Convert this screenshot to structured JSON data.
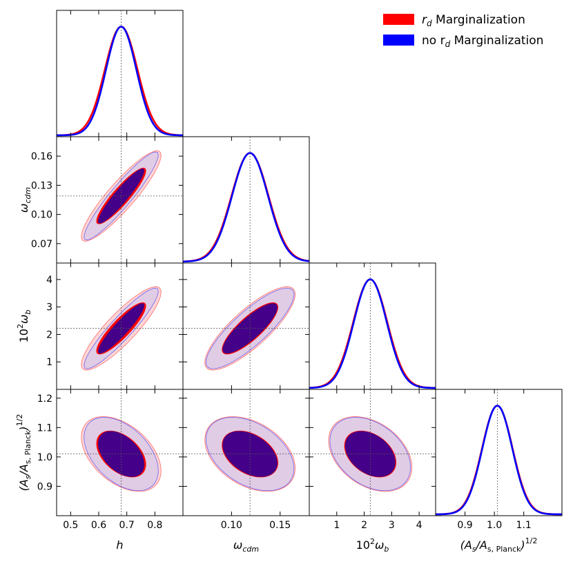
{
  "chart_data": {
    "type": "corner-plot",
    "title": "",
    "parameters": [
      "h",
      "omega_cdm",
      "10^2 omega_b",
      "(A_s/A_s,Planck)^1/2"
    ],
    "param_labels": [
      {
        "main": "h",
        "sub": "",
        "sup": ""
      },
      {
        "main": "ω",
        "sub": "cdm",
        "sup": ""
      },
      {
        "main": "10",
        "sup": "2",
        "main2": "ω",
        "sub": "b"
      },
      {
        "main": "(A",
        "sub": "s",
        "mid": "/A",
        "sub2": "s, Planck",
        "tail": ")",
        "sup": "1/2"
      }
    ],
    "fiducial": [
      0.68,
      0.119,
      2.22,
      1.01
    ],
    "ranges": [
      [
        0.45,
        0.9
      ],
      [
        0.05,
        0.18
      ],
      [
        0.0,
        4.6
      ],
      [
        0.8,
        1.23
      ]
    ],
    "x_ticks": [
      [
        "0.5",
        "0.6",
        "0.7",
        "0.8"
      ],
      [
        "0.10",
        "0.15"
      ],
      [
        "1",
        "2",
        "3",
        "4"
      ],
      [
        "0.9",
        "1.0",
        "1.1"
      ]
    ],
    "x_tick_values": [
      [
        0.5,
        0.6,
        0.7,
        0.8
      ],
      [
        0.1,
        0.15
      ],
      [
        1,
        2,
        3,
        4
      ],
      [
        0.9,
        1.0,
        1.1
      ]
    ],
    "y_ticks": {
      "1": {
        "labels": [
          "0.07",
          "0.10",
          "0.13",
          "0.16"
        ],
        "values": [
          0.07,
          0.1,
          0.13,
          0.16
        ]
      },
      "2": {
        "labels": [
          "1",
          "2",
          "3",
          "4"
        ],
        "values": [
          1,
          2,
          3,
          4
        ]
      },
      "3": {
        "labels": [
          "0.9",
          "1.0",
          "1.1",
          "1.2"
        ],
        "values": [
          0.9,
          1.0,
          1.1,
          1.2
        ]
      }
    },
    "series": [
      {
        "name": "r_d Marginalization",
        "legend_prefix": "r",
        "legend_sub": "d",
        "legend_suffix": " Marginalization",
        "color": "#ff0000",
        "color_inner": "#ff0000",
        "color_outer": "#ffc8c8",
        "means": [
          0.68,
          0.119,
          2.22,
          1.01
        ],
        "sigmas": [
          0.058,
          0.019,
          0.62,
          0.052
        ],
        "correlations": {
          "1-0": 0.9,
          "2-0": 0.87,
          "2-1": 0.82,
          "3-0": -0.45,
          "3-1": -0.38,
          "3-2": -0.36
        }
      },
      {
        "name": "no r_d Marginalization",
        "legend_prefix": "no r",
        "legend_sub": "d",
        "legend_suffix": " Marginalization",
        "color": "#0000ff",
        "color_inner": "#440088",
        "color_outer": "#d6c8ea",
        "means": [
          0.68,
          0.119,
          2.22,
          1.01
        ],
        "sigmas": [
          0.054,
          0.0185,
          0.6,
          0.051
        ],
        "correlations": {
          "1-0": 0.93,
          "2-0": 0.92,
          "2-1": 0.84,
          "3-0": -0.46,
          "3-1": -0.4,
          "3-2": -0.36
        }
      }
    ],
    "contour_levels": [
      "68%",
      "95%"
    ],
    "legend_location": "top-right"
  }
}
